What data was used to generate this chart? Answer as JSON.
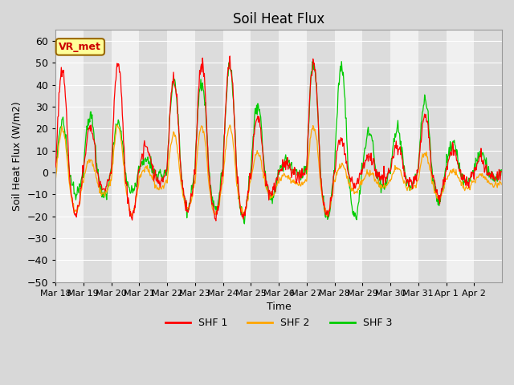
{
  "title": "Soil Heat Flux",
  "xlabel": "Time",
  "ylabel": "Soil Heat Flux (W/m2)",
  "ylim": [
    -50,
    65
  ],
  "yticks": [
    -50,
    -40,
    -30,
    -20,
    -10,
    0,
    10,
    20,
    30,
    40,
    50,
    60
  ],
  "xtick_labels": [
    "Mar 18",
    "Mar 19",
    "Mar 20",
    "Mar 21",
    "Mar 22",
    "Mar 23",
    "Mar 24",
    "Mar 25",
    "Mar 26",
    "Mar 27",
    "Mar 28",
    "Mar 29",
    "Mar 30",
    "Mar 31",
    "Apr 1",
    "Apr 2"
  ],
  "shf1_color": "#ff0000",
  "shf2_color": "#ffa500",
  "shf3_color": "#00cc00",
  "annotation_text": "VR_met",
  "annotation_bg": "#ffff99",
  "annotation_border": "#996600",
  "annotation_text_color": "#cc0000",
  "legend_labels": [
    "SHF 1",
    "SHF 2",
    "SHF 3"
  ],
  "n_days": 16,
  "pts_per_day": 48,
  "band_colors": [
    "#f0f0f0",
    "#dcdcdc"
  ]
}
